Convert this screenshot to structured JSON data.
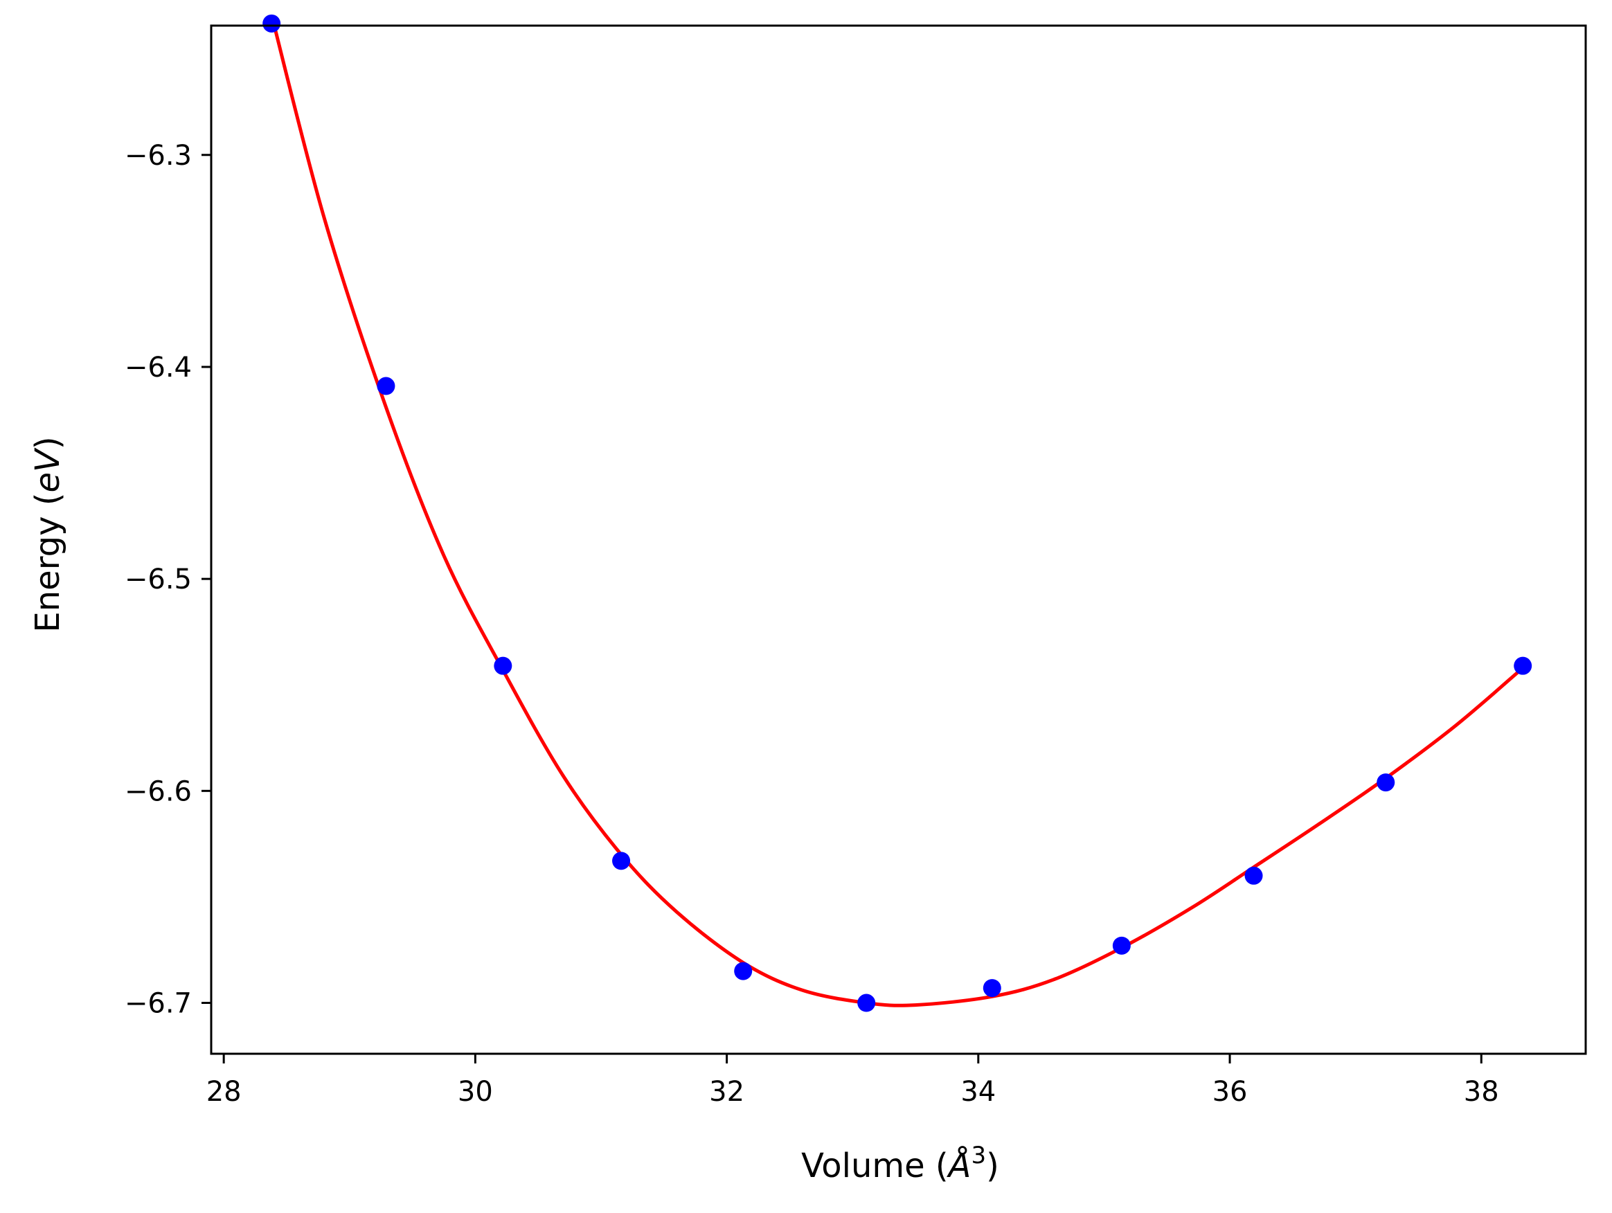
{
  "chart_data": {
    "type": "scatter",
    "title": "",
    "xlabel": "Volume (Å³)",
    "xlabel_parts": {
      "prefix": "Volume (",
      "symbol": "Å",
      "superscript": "3",
      "suffix": ")"
    },
    "ylabel": "Energy (eV)",
    "ylabel_parts": {
      "prefix": "Energy (",
      "italic": "eV",
      "suffix": ")"
    },
    "xlim": [
      27.9,
      38.83
    ],
    "ylim": [
      -6.724,
      -6.239
    ],
    "xticks": [
      28,
      30,
      32,
      34,
      36,
      38
    ],
    "xtick_labels": [
      "28",
      "30",
      "32",
      "34",
      "36",
      "38"
    ],
    "yticks": [
      -6.3,
      -6.4,
      -6.5,
      -6.6,
      -6.7
    ],
    "ytick_labels": [
      "−6.3",
      "−6.4",
      "−6.5",
      "−6.6",
      "−6.7"
    ],
    "grid": false,
    "legend": "none",
    "series": [
      {
        "kind": "points",
        "color": "#0000ff",
        "x": [
          28.38,
          29.29,
          30.22,
          31.16,
          32.13,
          33.11,
          34.11,
          35.14,
          36.19,
          37.24,
          38.33
        ],
        "y": [
          -6.238,
          -6.409,
          -6.541,
          -6.633,
          -6.685,
          -6.7,
          -6.693,
          -6.673,
          -6.64,
          -6.596,
          -6.541
        ]
      },
      {
        "kind": "fit-curve",
        "color": "#ff0000",
        "x": [
          28.38,
          28.8,
          29.29,
          29.75,
          30.22,
          30.7,
          31.16,
          31.6,
          32.13,
          32.6,
          33.11,
          33.5,
          34.11,
          34.6,
          35.14,
          35.7,
          36.19,
          36.7,
          37.24,
          37.8,
          38.33
        ],
        "y": [
          -6.234,
          -6.33,
          -6.419,
          -6.489,
          -6.543,
          -6.593,
          -6.63,
          -6.657,
          -6.681,
          -6.694,
          -6.7,
          -6.701,
          -6.697,
          -6.689,
          -6.674,
          -6.655,
          -6.636,
          -6.616,
          -6.594,
          -6.569,
          -6.542
        ]
      }
    ]
  }
}
